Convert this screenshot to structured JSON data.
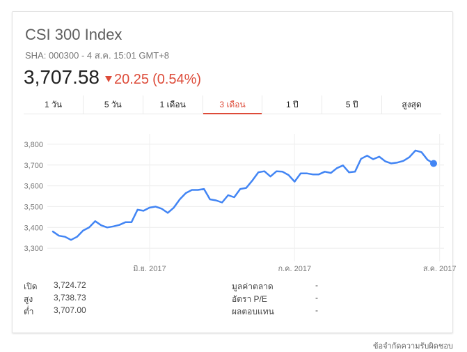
{
  "header": {
    "title": "CSI 300 Index",
    "subtitle": "SHA: 000300 - 4 ส.ค. 15:01 GMT+8",
    "price": "3,707.58",
    "change": "20.25",
    "change_pct": "(0.54%)",
    "change_color": "#dd4b39"
  },
  "tabs": [
    {
      "label": "1 วัน"
    },
    {
      "label": "5 วัน"
    },
    {
      "label": "1 เดือน"
    },
    {
      "label": "3 เดือน",
      "active": true
    },
    {
      "label": "1 ปี"
    },
    {
      "label": "5 ปี"
    },
    {
      "label": "สูงสุด"
    }
  ],
  "chart_data": {
    "type": "line",
    "ylim": [
      3250,
      3850
    ],
    "y_ticks": [
      "3,800",
      "3,700",
      "3,600",
      "3,500",
      "3,400",
      "3,300"
    ],
    "y_tick_values": [
      3800,
      3700,
      3600,
      3500,
      3400,
      3300
    ],
    "x_ticks": [
      "มิ.ย. 2017",
      "ก.ค. 2017",
      "ส.ค. 2017"
    ],
    "x_tick_index": [
      16,
      40,
      64
    ],
    "grid": true,
    "line_color": "#4285f4",
    "values": [
      3380,
      3360,
      3355,
      3340,
      3355,
      3385,
      3400,
      3430,
      3410,
      3400,
      3405,
      3412,
      3425,
      3425,
      3485,
      3480,
      3495,
      3500,
      3490,
      3470,
      3495,
      3535,
      3565,
      3580,
      3580,
      3585,
      3535,
      3530,
      3520,
      3555,
      3545,
      3585,
      3590,
      3625,
      3665,
      3670,
      3645,
      3670,
      3668,
      3652,
      3620,
      3660,
      3660,
      3655,
      3655,
      3668,
      3662,
      3685,
      3698,
      3665,
      3668,
      3730,
      3745,
      3728,
      3740,
      3718,
      3708,
      3712,
      3720,
      3738,
      3770,
      3762,
      3725,
      3707.58
    ]
  },
  "stats_left": [
    {
      "label": "เปิด",
      "value": "3,724.72"
    },
    {
      "label": "สูง",
      "value": "3,738.73"
    },
    {
      "label": "ต่ำ",
      "value": "3,707.00"
    }
  ],
  "stats_right": [
    {
      "label": "มูลค่าตลาด",
      "value": "-"
    },
    {
      "label": "อัตรา P/E",
      "value": "-"
    },
    {
      "label": "ผลตอบแทน",
      "value": "-"
    }
  ],
  "footer": "ข้อจำกัดความรับผิดชอบ"
}
